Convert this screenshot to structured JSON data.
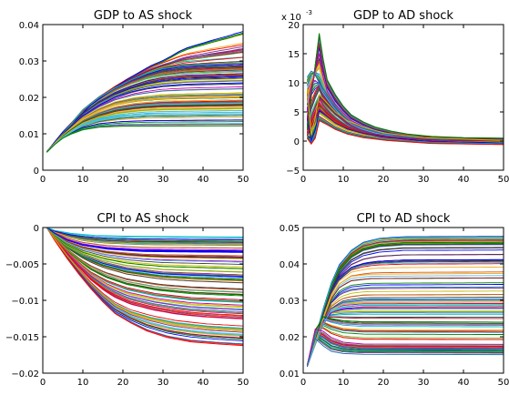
{
  "chart_data": [
    {
      "type": "line",
      "title": "GDP to AS shock",
      "xlim": [
        0,
        50
      ],
      "ylim": [
        0,
        0.04
      ],
      "x_ticks": [
        0,
        10,
        20,
        30,
        40,
        50
      ],
      "y_ticks": [
        0,
        0.01,
        0.02,
        0.03,
        0.04
      ],
      "x_tick_labels": [
        "0",
        "10",
        "20",
        "30",
        "40",
        "50"
      ],
      "y_tick_labels": [
        "0",
        "0.01",
        "0.02",
        "0.03",
        "0.04"
      ],
      "grid": false,
      "series_count": 100,
      "series": [
        {
          "values": [
            0.005,
            0.0078,
            0.0105,
            0.0127,
            0.0146,
            0.0179,
            0.0203,
            0.0227,
            0.0249,
            0.0268,
            0.0287,
            0.0301,
            0.0313,
            0.0326,
            0.0336,
            0.0343,
            0.0349,
            0.0356,
            0.0362,
            0.0368,
            0.0371,
            0.0375,
            0.0378,
            0.0381
          ],
          "x": [
            1,
            3,
            5,
            7,
            9,
            12,
            15,
            18,
            21,
            24,
            27,
            30,
            32,
            34,
            36,
            38,
            40,
            42,
            44,
            46,
            47,
            48,
            49,
            50
          ]
        },
        {
          "values": [
            0.005,
            0.0075,
            0.0102,
            0.0126,
            0.0165,
            0.0199,
            0.0226,
            0.0248,
            0.0266,
            0.0279,
            0.0287,
            0.0291,
            0.0294
          ],
          "x": [
            1,
            3,
            5,
            7,
            10,
            14,
            18,
            22,
            26,
            30,
            35,
            42,
            50
          ]
        },
        {
          "values": [
            0.005,
            0.0075,
            0.0101,
            0.0122,
            0.0155,
            0.0187,
            0.0211,
            0.0228,
            0.0241,
            0.0249,
            0.0255,
            0.0259
          ],
          "x": [
            1,
            3,
            5,
            7,
            10,
            14,
            18,
            22,
            26,
            30,
            36,
            50
          ]
        },
        {
          "values": [
            0.005,
            0.0074,
            0.0097,
            0.0115,
            0.0141,
            0.0164,
            0.0181,
            0.0192,
            0.0199,
            0.0203
          ],
          "x": [
            1,
            3,
            5,
            7,
            10,
            14,
            18,
            23,
            30,
            50
          ]
        },
        {
          "values": [
            0.005,
            0.0072,
            0.0091,
            0.0105,
            0.0123,
            0.0137,
            0.0146,
            0.0152,
            0.0155
          ],
          "x": [
            1,
            3,
            5,
            7,
            10,
            14,
            19,
            26,
            50
          ]
        },
        {
          "values": [
            0.005,
            0.0071,
            0.0088,
            0.0099,
            0.0111,
            0.0118,
            0.0121,
            0.0122
          ],
          "x": [
            1,
            3,
            5,
            7,
            10,
            14,
            20,
            50
          ]
        }
      ]
    },
    {
      "type": "line",
      "title": "GDP to AD shock",
      "scale_label": "x 10",
      "scale_exponent": "-3",
      "xlim": [
        0,
        50
      ],
      "ylim": [
        -5,
        20
      ],
      "x_ticks": [
        0,
        10,
        20,
        30,
        40,
        50
      ],
      "y_ticks": [
        -5,
        0,
        5,
        10,
        15,
        20
      ],
      "x_tick_labels": [
        "0",
        "10",
        "20",
        "30",
        "40",
        "50"
      ],
      "y_tick_labels": [
        "−5",
        "0",
        "5",
        "10",
        "15",
        "20"
      ],
      "grid": false,
      "series_count": 100,
      "series": [
        {
          "values": [
            2.0,
            7.5,
            13.0,
            18.5,
            14.0,
            10.5,
            8.0,
            6.0,
            4.5,
            3.3,
            2.4,
            1.7,
            1.2,
            0.8,
            0.6,
            0.5
          ],
          "x": [
            1,
            2,
            3,
            4,
            5,
            6,
            8,
            10,
            12,
            15,
            18,
            22,
            26,
            32,
            40,
            50
          ]
        },
        {
          "values": [
            5.0,
            9.0,
            12.0,
            15.0,
            11.0,
            8.5,
            6.3,
            4.8,
            3.5,
            2.5,
            1.7,
            1.1,
            0.6,
            0.3,
            0.2
          ],
          "x": [
            1,
            2,
            3,
            4,
            5,
            6,
            8,
            10,
            12,
            15,
            18,
            22,
            28,
            38,
            50
          ]
        },
        {
          "values": [
            11.0,
            12.0,
            11.5,
            10.0,
            8.0,
            6.0,
            4.4,
            3.2,
            2.2,
            1.4,
            0.8,
            0.4,
            0.2
          ],
          "x": [
            1,
            2,
            3,
            4,
            6,
            8,
            10,
            12,
            15,
            19,
            24,
            32,
            50
          ]
        },
        {
          "values": [
            3.0,
            6.0,
            8.0,
            9.5,
            7.5,
            5.6,
            4.2,
            3.0,
            2.0,
            1.2,
            0.6,
            0.2,
            0.0
          ],
          "x": [
            1,
            2,
            3,
            4,
            5,
            7,
            9,
            11,
            14,
            18,
            24,
            34,
            50
          ]
        },
        {
          "values": [
            1.0,
            2.5,
            4.0,
            5.5,
            4.3,
            3.2,
            2.2,
            1.4,
            0.7,
            0.2,
            0.0
          ],
          "x": [
            1,
            2,
            3,
            4,
            6,
            8,
            11,
            15,
            21,
            32,
            50
          ]
        },
        {
          "values": [
            0.5,
            -0.5,
            0.5,
            3.5,
            2.8,
            2.0,
            1.2,
            0.6,
            0.1,
            -0.4,
            -0.6
          ],
          "x": [
            1,
            2,
            3,
            4,
            6,
            8,
            11,
            15,
            21,
            32,
            50
          ]
        },
        {
          "values": [
            9.0,
            1.0,
            4.0,
            8.0,
            6.5,
            5.0,
            3.5,
            2.4,
            1.4,
            0.6,
            0.1
          ],
          "x": [
            1,
            2,
            3,
            4,
            6,
            8,
            11,
            15,
            20,
            30,
            50
          ]
        }
      ]
    },
    {
      "type": "line",
      "title": "CPI to AS shock",
      "xlim": [
        0,
        50
      ],
      "ylim": [
        -0.02,
        0
      ],
      "x_ticks": [
        0,
        10,
        20,
        30,
        40,
        50
      ],
      "y_ticks": [
        -0.02,
        -0.015,
        -0.01,
        -0.005,
        0
      ],
      "x_tick_labels": [
        "0",
        "10",
        "20",
        "30",
        "40",
        "50"
      ],
      "y_tick_labels": [
        "−0.02",
        "−0.015",
        "−0.01",
        "−0.005",
        "0"
      ],
      "grid": false,
      "series_count": 100,
      "series": [
        {
          "values": [
            0,
            -0.0018,
            -0.0042,
            -0.0064,
            -0.0084,
            -0.0102,
            -0.0118,
            -0.0131,
            -0.0142,
            -0.0151,
            -0.0157,
            -0.016,
            -0.0162
          ],
          "x": [
            1,
            3,
            6,
            9,
            12,
            15,
            18,
            22,
            26,
            31,
            37,
            44,
            50
          ]
        },
        {
          "values": [
            0,
            -0.0016,
            -0.0038,
            -0.0058,
            -0.0077,
            -0.0093,
            -0.0106,
            -0.0117,
            -0.0125,
            -0.0132,
            -0.0137,
            -0.014
          ],
          "x": [
            1,
            3,
            6,
            9,
            12,
            15,
            18,
            22,
            27,
            33,
            41,
            50
          ]
        },
        {
          "values": [
            0,
            -0.0014,
            -0.0032,
            -0.0048,
            -0.0062,
            -0.0074,
            -0.0084,
            -0.0092,
            -0.0098,
            -0.0101
          ],
          "x": [
            1,
            3,
            6,
            9,
            12,
            16,
            21,
            28,
            37,
            50
          ]
        },
        {
          "values": [
            0,
            -0.0012,
            -0.0026,
            -0.0038,
            -0.0048,
            -0.0056,
            -0.0062,
            -0.0066
          ],
          "x": [
            1,
            3,
            6,
            10,
            15,
            21,
            30,
            50
          ]
        },
        {
          "values": [
            0,
            -0.0008,
            -0.0017,
            -0.0024,
            -0.0029,
            -0.0032,
            -0.0033
          ],
          "x": [
            1,
            3,
            6,
            10,
            16,
            25,
            50
          ]
        },
        {
          "values": [
            0,
            -0.0004,
            -0.0008,
            -0.0011,
            -0.0012,
            -0.0013
          ],
          "x": [
            1,
            3,
            7,
            13,
            22,
            50
          ]
        }
      ]
    },
    {
      "type": "line",
      "title": "CPI to AD shock",
      "xlim": [
        0,
        50
      ],
      "ylim": [
        0.01,
        0.05
      ],
      "x_ticks": [
        0,
        10,
        20,
        30,
        40,
        50
      ],
      "y_ticks": [
        0.01,
        0.02,
        0.03,
        0.04,
        0.05
      ],
      "x_tick_labels": [
        "0",
        "10",
        "20",
        "30",
        "40",
        "50"
      ],
      "y_tick_labels": [
        "0.01",
        "0.02",
        "0.03",
        "0.04",
        "0.05"
      ],
      "grid": false,
      "series_count": 100,
      "series": [
        {
          "values": [
            0.012,
            0.0195,
            0.0275,
            0.0345,
            0.0395,
            0.0435,
            0.0458,
            0.0469,
            0.0473,
            0.0474
          ],
          "x": [
            1,
            3,
            5,
            7,
            9,
            12,
            15,
            19,
            25,
            50
          ]
        },
        {
          "values": [
            0.012,
            0.019,
            0.0265,
            0.033,
            0.0375,
            0.041,
            0.0428,
            0.0438,
            0.0443,
            0.0444
          ],
          "x": [
            1,
            3,
            5,
            7,
            9,
            12,
            15,
            19,
            25,
            50
          ]
        },
        {
          "values": [
            0.012,
            0.0185,
            0.025,
            0.031,
            0.0345,
            0.0366,
            0.0372,
            0.0374
          ],
          "x": [
            1,
            3,
            5,
            7,
            9,
            12,
            17,
            50
          ]
        },
        {
          "values": [
            0.012,
            0.018,
            0.0235,
            0.0275,
            0.0292,
            0.0299,
            0.03
          ],
          "x": [
            1,
            3,
            5,
            7,
            10,
            15,
            50
          ]
        },
        {
          "values": [
            0.012,
            0.0215,
            0.0255,
            0.025,
            0.0244,
            0.0241,
            0.024
          ],
          "x": [
            1,
            3,
            5,
            7,
            10,
            15,
            50
          ]
        },
        {
          "values": [
            0.012,
            0.022,
            0.0215,
            0.0198,
            0.0185,
            0.018,
            0.0179
          ],
          "x": [
            1,
            3,
            5,
            7,
            10,
            15,
            50
          ]
        },
        {
          "values": [
            0.012,
            0.0195,
            0.0175,
            0.016,
            0.0154,
            0.0152,
            0.0151
          ],
          "x": [
            1,
            3,
            5,
            7,
            10,
            15,
            50
          ]
        }
      ]
    }
  ]
}
